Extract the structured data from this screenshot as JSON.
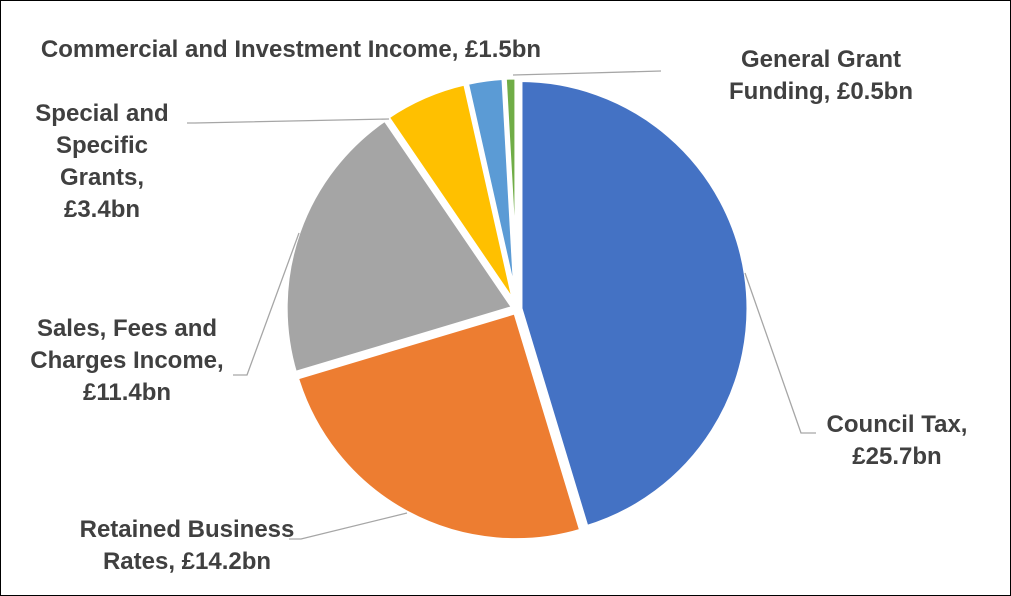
{
  "chart_data": {
    "type": "pie",
    "title": "",
    "start_angle_deg": 0,
    "direction": "clockwise",
    "slices": [
      {
        "name": "Council Tax",
        "value": 25.7,
        "value_label": "£25.7bn",
        "color": "#4472C4",
        "label_lines": [
          "Council Tax,",
          "£25.7bn"
        ]
      },
      {
        "name": "Retained Business Rates",
        "value": 14.2,
        "value_label": "£14.2bn",
        "color": "#ED7D31",
        "label_lines": [
          "Retained Business",
          "Rates, £14.2bn"
        ]
      },
      {
        "name": "Sales, Fees and Charges Income",
        "value": 11.4,
        "value_label": "£11.4bn",
        "color": "#A5A5A5",
        "label_lines": [
          "Sales, Fees and",
          "Charges Income,",
          "£11.4bn"
        ]
      },
      {
        "name": "Special and Specific Grants",
        "value": 3.4,
        "value_label": "£3.4bn",
        "color": "#FFC000",
        "label_lines": [
          "Special and",
          "Specific",
          "Grants,",
          "£3.4bn"
        ]
      },
      {
        "name": "Commercial and Investment Income",
        "value": 1.5,
        "value_label": "£1.5bn",
        "color": "#5B9BD5",
        "label_lines": [
          "Commercial and Investment Income, £1.5bn"
        ]
      },
      {
        "name": "General Grant Funding",
        "value": 0.5,
        "value_label": "£0.5bn",
        "color": "#70AD47",
        "label_lines": [
          "General Grant",
          "Funding, £0.5bn"
        ]
      }
    ],
    "legend": "none",
    "label_style": "outside with leader lines"
  }
}
